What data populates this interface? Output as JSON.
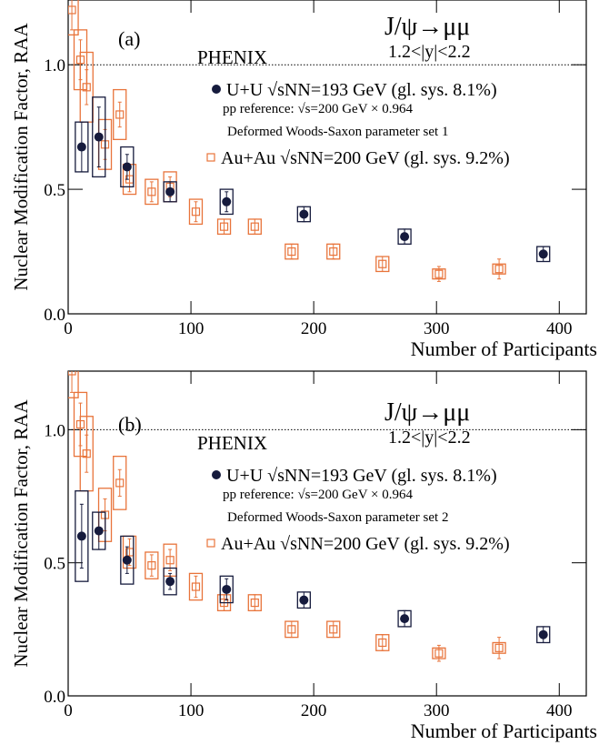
{
  "chart_data": [
    {
      "type": "scatter",
      "panel_label": "(a)",
      "title": "J/ψ→μμ",
      "subtitle": "1.2<|y|<2.2",
      "experiment": "PHENIX",
      "annotations": [
        "pp reference: √s=200 GeV × 0.964",
        "Deformed Woods-Saxon parameter set 1"
      ],
      "xlabel": "Number of Participants",
      "ylabel": "Nuclear Modification Factor, RAA",
      "xlim": [
        0,
        422
      ],
      "ylim": [
        0,
        1.26
      ],
      "xticks": [
        0,
        100,
        200,
        300,
        400
      ],
      "yticks": [
        {
          "value": 0,
          "label": "0.0"
        },
        {
          "value": 0.5,
          "label": "0.5"
        },
        {
          "value": 1,
          "label": "1.0"
        }
      ],
      "hline": 1,
      "series": [
        {
          "name": "U+U √sNN=193 GeV (gl. sys. 8.1%)",
          "color": "#161b3d",
          "marker": "filled-circle",
          "x": [
            11,
            25,
            48,
            83,
            129,
            192,
            274,
            387
          ],
          "values": [
            0.67,
            0.71,
            0.59,
            0.49,
            0.45,
            0.4,
            0.31,
            0.24
          ],
          "errors": [
            0.1,
            0.12,
            0.05,
            0.04,
            0.04,
            0.03,
            0.03,
            0.03
          ],
          "sys": [
            0.1,
            0.16,
            0.08,
            0.04,
            0.05,
            0.03,
            0.03,
            0.03
          ]
        },
        {
          "name": "Au+Au √sNN=200 GeV (gl. sys. 9.2%)",
          "color": "#e8743b",
          "marker": "open-square",
          "x": [
            3,
            10,
            15,
            30,
            42,
            50,
            68,
            83,
            104,
            127,
            152,
            182,
            216,
            256,
            302,
            351
          ],
          "values": [
            1.22,
            1.02,
            0.91,
            0.68,
            0.8,
            0.54,
            0.49,
            0.51,
            0.41,
            0.35,
            0.35,
            0.25,
            0.25,
            0.2,
            0.16,
            0.18
          ],
          "errors": [
            0.08,
            0.08,
            0.07,
            0.06,
            0.05,
            0.05,
            0.04,
            0.04,
            0.04,
            0.03,
            0.03,
            0.03,
            0.03,
            0.03,
            0.03,
            0.04
          ],
          "sys": [
            0.1,
            0.12,
            0.14,
            0.1,
            0.1,
            0.06,
            0.05,
            0.06,
            0.05,
            0.03,
            0.03,
            0.03,
            0.03,
            0.03,
            0.02,
            0.02
          ]
        }
      ]
    },
    {
      "type": "scatter",
      "panel_label": "(b)",
      "title": "J/ψ→μμ",
      "subtitle": "1.2<|y|<2.2",
      "experiment": "PHENIX",
      "annotations": [
        "pp reference: √s=200 GeV × 0.964",
        "Deformed Woods-Saxon parameter set 2"
      ],
      "xlabel": "Number of Participants",
      "ylabel": "Nuclear Modification Factor, RAA",
      "xlim": [
        0,
        422
      ],
      "ylim": [
        0,
        1.22
      ],
      "xticks": [
        0,
        100,
        200,
        300,
        400
      ],
      "yticks": [
        {
          "value": 0,
          "label": "0.0"
        },
        {
          "value": 0.5,
          "label": "0.5"
        },
        {
          "value": 1,
          "label": "1.0"
        }
      ],
      "hline": 1,
      "series": [
        {
          "name": "U+U √sNN=193 GeV (gl. sys. 8.1%)",
          "color": "#161b3d",
          "marker": "filled-circle",
          "x": [
            11,
            25,
            48,
            83,
            129,
            192,
            274,
            387
          ],
          "values": [
            0.6,
            0.62,
            0.51,
            0.43,
            0.4,
            0.36,
            0.29,
            0.23
          ],
          "errors": [
            0.12,
            0.07,
            0.05,
            0.03,
            0.04,
            0.03,
            0.03,
            0.03
          ],
          "sys": [
            0.17,
            0.07,
            0.09,
            0.05,
            0.05,
            0.03,
            0.03,
            0.03
          ]
        },
        {
          "name": "Au+Au √sNN=200 GeV (gl. sys. 9.2%)",
          "color": "#e8743b",
          "marker": "open-square",
          "x": [
            3,
            10,
            15,
            30,
            42,
            50,
            68,
            83,
            104,
            127,
            152,
            182,
            216,
            256,
            302,
            351
          ],
          "values": [
            1.22,
            1.02,
            0.91,
            0.68,
            0.8,
            0.54,
            0.49,
            0.51,
            0.41,
            0.35,
            0.35,
            0.25,
            0.25,
            0.2,
            0.16,
            0.18
          ],
          "errors": [
            0.08,
            0.08,
            0.07,
            0.06,
            0.05,
            0.05,
            0.04,
            0.04,
            0.04,
            0.03,
            0.03,
            0.03,
            0.03,
            0.03,
            0.03,
            0.04
          ],
          "sys": [
            0.1,
            0.12,
            0.14,
            0.1,
            0.1,
            0.06,
            0.05,
            0.06,
            0.05,
            0.03,
            0.03,
            0.03,
            0.03,
            0.03,
            0.02,
            0.02
          ]
        }
      ]
    }
  ]
}
